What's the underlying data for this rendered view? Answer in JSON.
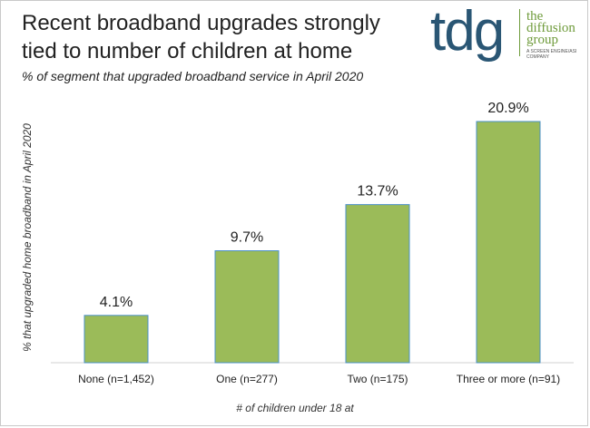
{
  "chart_data": {
    "type": "bar",
    "title": "Recent broadband upgrades strongly tied to number of children at home",
    "subtitle": "% of segment that upgraded broadband service in April 2020",
    "xlabel": "# of children under 18 at",
    "ylabel": "% that upgraded home broadband in April 2020",
    "categories": [
      "None (n=1,452)",
      "One (n=277)",
      "Two (n=175)",
      "Three or more (n=91)"
    ],
    "values": [
      4.1,
      9.7,
      13.7,
      20.9
    ],
    "value_labels": [
      "4.1%",
      "9.7%",
      "13.7%",
      "20.9%"
    ],
    "ylim": [
      0,
      22
    ],
    "grid": false,
    "bar_color": "#9bbb59",
    "bar_edge_color": "#4a90c8"
  },
  "logo": {
    "mark": "tdg",
    "name_lines": [
      "the",
      "diffusion",
      "group"
    ],
    "tagline": "A SCREEN ENGINE/ASI COMPANY",
    "mark_color": "#2a5674",
    "name_color": "#6f9b3b"
  }
}
